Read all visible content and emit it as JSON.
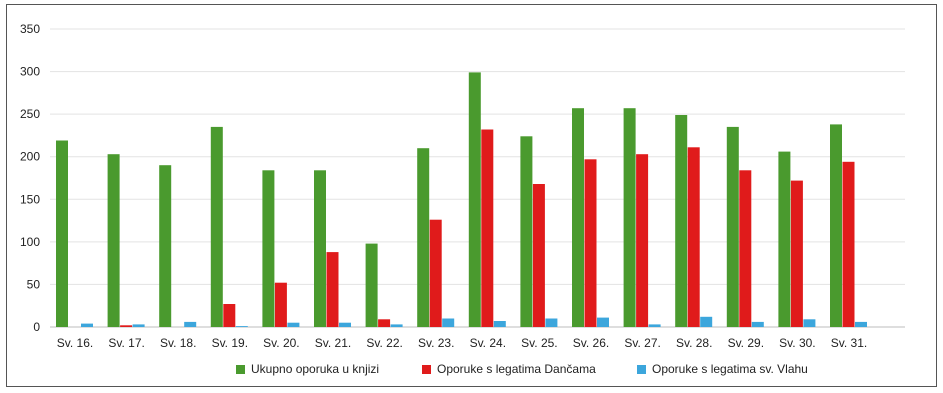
{
  "chart_data": {
    "type": "bar",
    "categories": [
      "Sv. 16.",
      "Sv. 17.",
      "Sv. 18.",
      "Sv. 19.",
      "Sv. 20.",
      "Sv. 21.",
      "Sv. 22.",
      "Sv. 23.",
      "Sv. 24.",
      "Sv. 25.",
      "Sv. 26.",
      "Sv. 27.",
      "Sv. 28.",
      "Sv. 29.",
      "Sv. 30.",
      "Sv. 31."
    ],
    "series": [
      {
        "name": "Ukupno oporuka u knjizi",
        "color": "#4a9a2e",
        "values": [
          219,
          203,
          190,
          235,
          184,
          184,
          98,
          210,
          299,
          224,
          257,
          257,
          249,
          235,
          206,
          238
        ]
      },
      {
        "name": "Oporuke s legatima Dančama",
        "color": "#e01b1b",
        "values": [
          0,
          2,
          0,
          27,
          52,
          88,
          9,
          126,
          232,
          168,
          197,
          203,
          211,
          184,
          172,
          194
        ]
      },
      {
        "name": "Oporuke s legatima sv. Vlahu",
        "color": "#3ca6dc",
        "values": [
          4,
          3,
          6,
          1,
          5,
          5,
          3,
          10,
          7,
          10,
          11,
          3,
          12,
          6,
          9,
          6
        ]
      }
    ],
    "yticks": [
      0,
      50,
      100,
      150,
      200,
      250,
      300,
      350
    ],
    "ylim": [
      0,
      350
    ],
    "grid": true,
    "legend_position": "bottom"
  }
}
